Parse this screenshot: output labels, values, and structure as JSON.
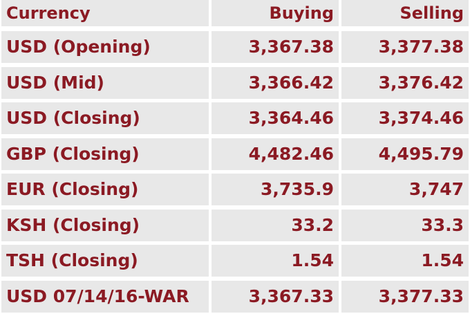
{
  "table": {
    "header": {
      "currency": "Currency",
      "buying": "Buying",
      "selling": "Selling"
    },
    "rows": [
      {
        "currency": "USD (Opening)",
        "buying": "3,367.38",
        "selling": "3,377.38"
      },
      {
        "currency": "USD (Mid)",
        "buying": "3,366.42",
        "selling": "3,376.42"
      },
      {
        "currency": "USD (Closing)",
        "buying": "3,364.46",
        "selling": "3,374.46"
      },
      {
        "currency": "GBP (Closing)",
        "buying": "4,482.46",
        "selling": "4,495.79"
      },
      {
        "currency": "EUR (Closing)",
        "buying": "3,735.9",
        "selling": "3,747"
      },
      {
        "currency": "KSH (Closing)",
        "buying": "33.2",
        "selling": "33.3"
      },
      {
        "currency": "TSH (Closing)",
        "buying": "1.54",
        "selling": "1.54"
      },
      {
        "currency": "USD 07/14/16-WAR",
        "buying": "3,367.33",
        "selling": "3,377.33"
      }
    ]
  },
  "colors": {
    "text": "#8b1a23",
    "cell_background": "#e8e8e8",
    "grid": "#ffffff"
  }
}
